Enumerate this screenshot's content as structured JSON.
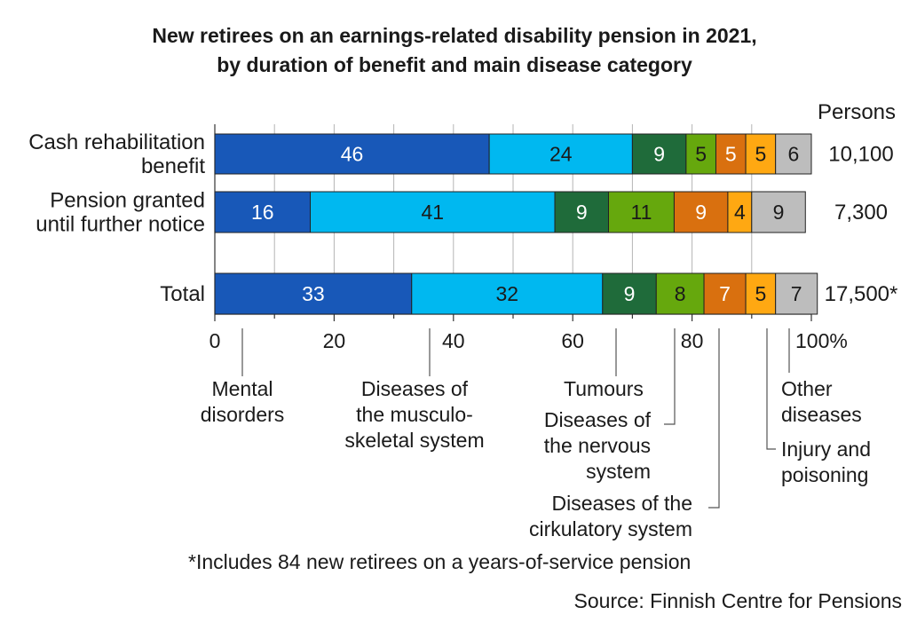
{
  "title_line1": "New retirees on an earnings-related disability pension in 2021,",
  "title_line2": "by duration of benefit and main disease category",
  "persons_header": "Persons",
  "footnote": "*Includes 84 new retirees on a years-of-service pension",
  "source": "Source: Finnish Centre for Pensions",
  "chart_data": {
    "type": "bar",
    "orientation": "horizontal",
    "stacked": true,
    "unit": "%",
    "categories": [
      [
        "Cash rehabilitation",
        "benefit"
      ],
      [
        "Pension granted",
        "until further notice"
      ],
      [
        "Total"
      ]
    ],
    "persons": [
      "10,100",
      "7,300",
      "17,500*"
    ],
    "series": [
      {
        "name": "Mental disorders",
        "label_lines": [
          "Mental",
          "disorders"
        ],
        "values": [
          46,
          16,
          33
        ],
        "color": "#1858b8",
        "text_color": "#ffffff"
      },
      {
        "name": "Diseases of the musculo-skeletal system",
        "label_lines": [
          "Diseases of",
          "the musculo-",
          "skeletal system"
        ],
        "values": [
          24,
          41,
          32
        ],
        "color": "#00b8f0",
        "text_color": "#1a1a1a"
      },
      {
        "name": "Tumours",
        "label_lines": [
          "Tumours"
        ],
        "values": [
          9,
          9,
          9
        ],
        "color": "#1f6b3a",
        "text_color": "#ffffff"
      },
      {
        "name": "Diseases of the nervous system",
        "label_lines": [
          "Diseases of",
          "the nervous",
          "system"
        ],
        "values": [
          5,
          11,
          8
        ],
        "color": "#66a80d",
        "text_color": "#1a1a1a"
      },
      {
        "name": "Diseases of the cirkulatory system",
        "label_lines": [
          "Diseases of the",
          "cirkulatory system"
        ],
        "values": [
          5,
          9,
          7
        ],
        "color": "#d9700f",
        "text_color": "#ffffff"
      },
      {
        "name": "Injury and poisoning",
        "label_lines": [
          "Injury and",
          "poisoning"
        ],
        "values": [
          5,
          4,
          5
        ],
        "color": "#ffa812",
        "text_color": "#1a1a1a"
      },
      {
        "name": "Other diseases",
        "label_lines": [
          "Other",
          "diseases"
        ],
        "values": [
          6,
          9,
          7
        ],
        "color": "#bdbdbd",
        "text_color": "#1a1a1a"
      }
    ],
    "xlim": [
      0,
      100
    ],
    "xticks": [
      "0",
      "20",
      "40",
      "60",
      "80",
      "100%"
    ],
    "grid": true,
    "legend": "annotated below axis"
  }
}
